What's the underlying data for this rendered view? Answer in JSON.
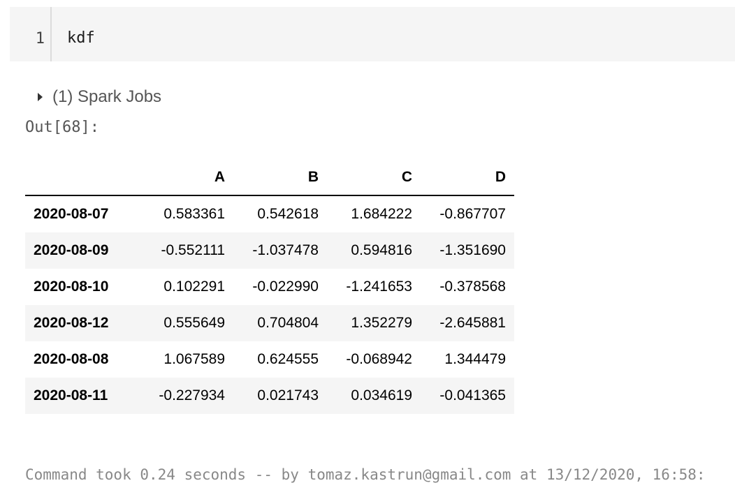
{
  "code_cell": {
    "line_number": "1",
    "code": "kdf"
  },
  "spark_jobs": {
    "label": "(1) Spark Jobs"
  },
  "output": {
    "label": "Out[68]:"
  },
  "table": {
    "columns": [
      "",
      "A",
      "B",
      "C",
      "D"
    ],
    "rows": [
      {
        "index": "2020-08-07",
        "A": "0.583361",
        "B": "0.542618",
        "C": "1.684222",
        "D": "-0.867707"
      },
      {
        "index": "2020-08-09",
        "A": "-0.552111",
        "B": "-1.037478",
        "C": "0.594816",
        "D": "-1.351690"
      },
      {
        "index": "2020-08-10",
        "A": "0.102291",
        "B": "-0.022990",
        "C": "-1.241653",
        "D": "-0.378568"
      },
      {
        "index": "2020-08-12",
        "A": "0.555649",
        "B": "0.704804",
        "C": "1.352279",
        "D": "-2.645881"
      },
      {
        "index": "2020-08-08",
        "A": "1.067589",
        "B": "0.624555",
        "C": "-0.068942",
        "D": "1.344479"
      },
      {
        "index": "2020-08-11",
        "A": "-0.227934",
        "B": "0.021743",
        "C": "0.034619",
        "D": "-0.041365"
      }
    ]
  },
  "footer": {
    "text": "Command took 0.24 seconds -- by tomaz.kastrun@gmail.com at 13/12/2020, 16:58:"
  }
}
